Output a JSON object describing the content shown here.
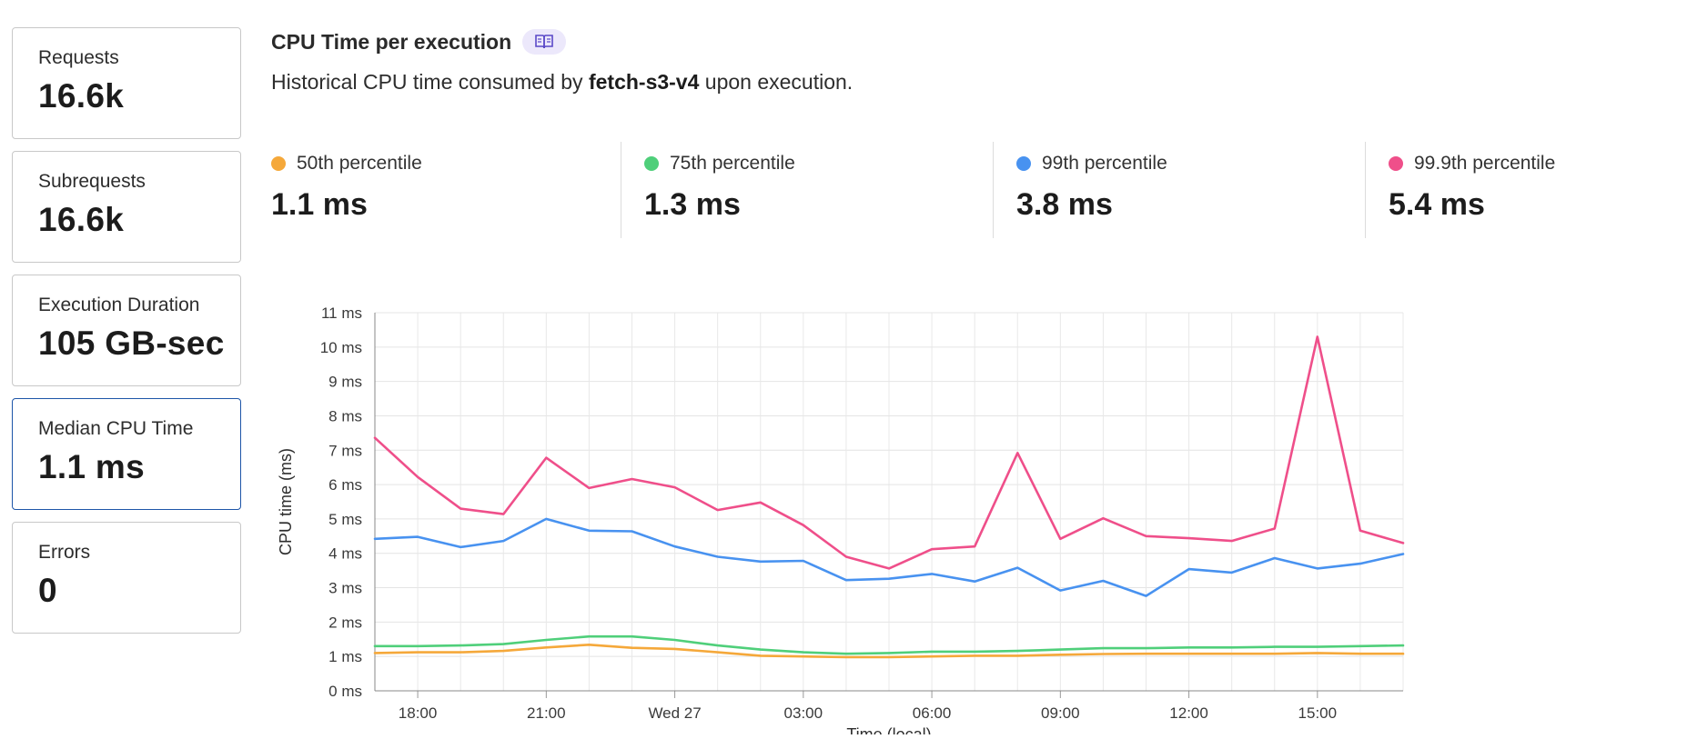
{
  "sidebar": {
    "cards": [
      {
        "label": "Requests",
        "value": "16.6k"
      },
      {
        "label": "Subrequests",
        "value": "16.6k"
      },
      {
        "label": "Execution Duration",
        "value": "105 GB-sec"
      },
      {
        "label": "Median CPU Time",
        "value": "1.1 ms"
      },
      {
        "label": "Errors",
        "value": "0"
      }
    ]
  },
  "header": {
    "title": "CPU Time per execution",
    "subtitle_prefix": "Historical CPU time consumed by ",
    "script_name": "fetch-s3-v4",
    "subtitle_suffix": " upon execution.",
    "doc_icon": "book-icon"
  },
  "percentiles": [
    {
      "label": "50th percentile",
      "value": "1.1 ms",
      "color": "#f5a83a"
    },
    {
      "label": "75th percentile",
      "value": "1.3 ms",
      "color": "#4fcf7a"
    },
    {
      "label": "99th percentile",
      "value": "3.8 ms",
      "color": "#4892f0"
    },
    {
      "label": "99.9th percentile",
      "value": "5.4 ms",
      "color": "#ef4f8a"
    }
  ],
  "chart_data": {
    "type": "line",
    "title": "CPU Time per execution",
    "xlabel": "Time (local)",
    "ylabel": "CPU time (ms)",
    "ylim": [
      0,
      11
    ],
    "yticks": [
      0,
      1,
      2,
      3,
      4,
      5,
      6,
      7,
      8,
      9,
      10,
      11
    ],
    "ytick_labels": [
      "0 ms",
      "1 ms",
      "2 ms",
      "3 ms",
      "4 ms",
      "5 ms",
      "6 ms",
      "7 ms",
      "8 ms",
      "9 ms",
      "10 ms",
      "11 ms"
    ],
    "xlim": [
      -1,
      23
    ],
    "xticks": [
      0,
      3,
      6,
      9,
      12,
      15,
      18,
      21
    ],
    "xtick_labels": [
      "18:00",
      "21:00",
      "Wed 27",
      "03:00",
      "06:00",
      "09:00",
      "12:00",
      "15:00"
    ],
    "x": [
      -1,
      0,
      1,
      2,
      3,
      4,
      5,
      6,
      7,
      8,
      9,
      10,
      11,
      12,
      13,
      14,
      15,
      16,
      17,
      18,
      19,
      20,
      21,
      22,
      23
    ],
    "grid": true,
    "series": [
      {
        "name": "50th percentile",
        "color": "#f5a83a",
        "values": [
          1.1,
          1.12,
          1.12,
          1.16,
          1.26,
          1.34,
          1.25,
          1.22,
          1.12,
          1.02,
          1.0,
          0.98,
          0.98,
          1.0,
          1.02,
          1.02,
          1.05,
          1.07,
          1.08,
          1.08,
          1.08,
          1.08,
          1.1,
          1.08,
          1.08
        ]
      },
      {
        "name": "75th percentile",
        "color": "#4fcf7a",
        "values": [
          1.3,
          1.3,
          1.32,
          1.36,
          1.48,
          1.58,
          1.58,
          1.48,
          1.32,
          1.2,
          1.12,
          1.08,
          1.1,
          1.14,
          1.14,
          1.16,
          1.2,
          1.24,
          1.24,
          1.26,
          1.26,
          1.28,
          1.28,
          1.3,
          1.32
        ]
      },
      {
        "name": "99th percentile",
        "color": "#4892f0",
        "values": [
          4.42,
          4.48,
          4.18,
          4.36,
          5.0,
          4.66,
          4.64,
          4.2,
          3.9,
          3.76,
          3.78,
          3.22,
          3.26,
          3.4,
          3.18,
          3.58,
          2.92,
          3.2,
          2.76,
          3.54,
          3.44,
          3.86,
          3.56,
          3.7,
          3.98
        ]
      },
      {
        "name": "99.9th percentile",
        "color": "#ef4f8a",
        "values": [
          7.36,
          6.22,
          5.3,
          5.14,
          6.78,
          5.9,
          6.16,
          5.92,
          5.26,
          5.48,
          4.82,
          3.9,
          3.56,
          4.12,
          4.2,
          6.92,
          4.42,
          5.02,
          4.5,
          4.44,
          4.36,
          4.72,
          10.3,
          4.66,
          4.3
        ]
      }
    ]
  }
}
